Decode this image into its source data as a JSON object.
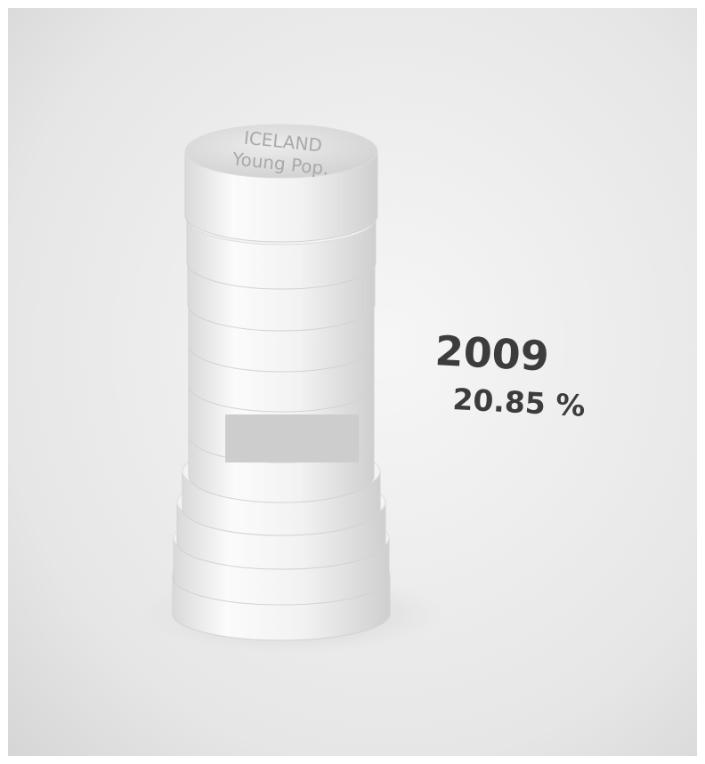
{
  "disc_label": {
    "line1": "ICELAND",
    "line2": "Young Pop."
  },
  "reading": {
    "year": "2009",
    "percent": "20.85 %"
  }
}
